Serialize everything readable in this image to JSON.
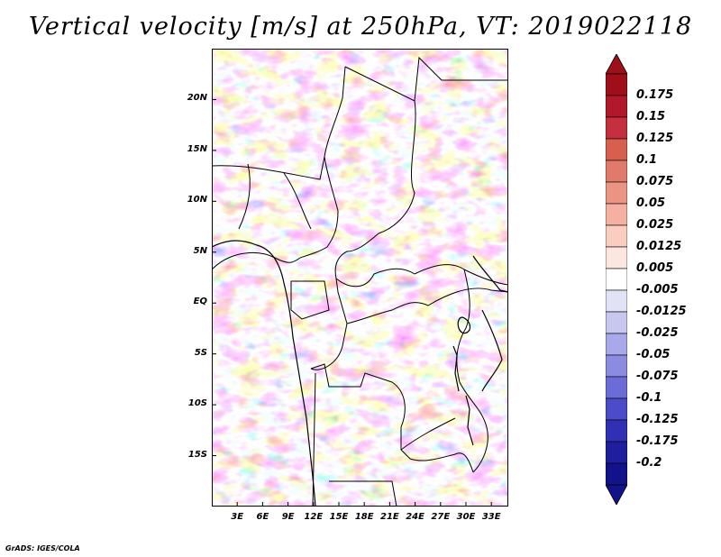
{
  "title": "Vertical velocity [m/s] at 250hPa, VT: 2019022118",
  "credit": "GrADS: IGES/COLA",
  "map": {
    "lat_labels": [
      "20N",
      "15N",
      "10N",
      "5N",
      "EQ",
      "5S",
      "10S",
      "15S"
    ],
    "lat_values": [
      20,
      15,
      10,
      5,
      0,
      -5,
      -10,
      -15
    ],
    "lon_labels": [
      "3E",
      "6E",
      "9E",
      "12E",
      "15E",
      "18E",
      "21E",
      "24E",
      "27E",
      "30E",
      "33E"
    ],
    "lon_values": [
      3,
      6,
      9,
      12,
      15,
      18,
      21,
      24,
      27,
      30,
      33
    ],
    "lat_range": [
      -20,
      25
    ],
    "lon_range": [
      0,
      35
    ]
  },
  "colorbar": {
    "labels": [
      "0.175",
      "0.15",
      "0.125",
      "0.1",
      "0.075",
      "0.05",
      "0.025",
      "0.0125",
      "0.005",
      "-0.005",
      "-0.0125",
      "-0.025",
      "-0.05",
      "-0.075",
      "-0.1",
      "-0.125",
      "-0.175",
      "-0.2"
    ],
    "colors": [
      "#9e0f1a",
      "#b2182b",
      "#c4303d",
      "#d6604d",
      "#e07a6a",
      "#ea9584",
      "#f4b0a0",
      "#f9cdc0",
      "#fde6df",
      "#ffffff",
      "#e2e2f6",
      "#c7c7f0",
      "#a9a9ea",
      "#8b8be0",
      "#6c6cd6",
      "#4c4cc8",
      "#3030b5",
      "#1f1f9e",
      "#12128a"
    ],
    "triangle_top_color": "#9e0f1a",
    "triangle_bottom_color": "#12128a"
  }
}
